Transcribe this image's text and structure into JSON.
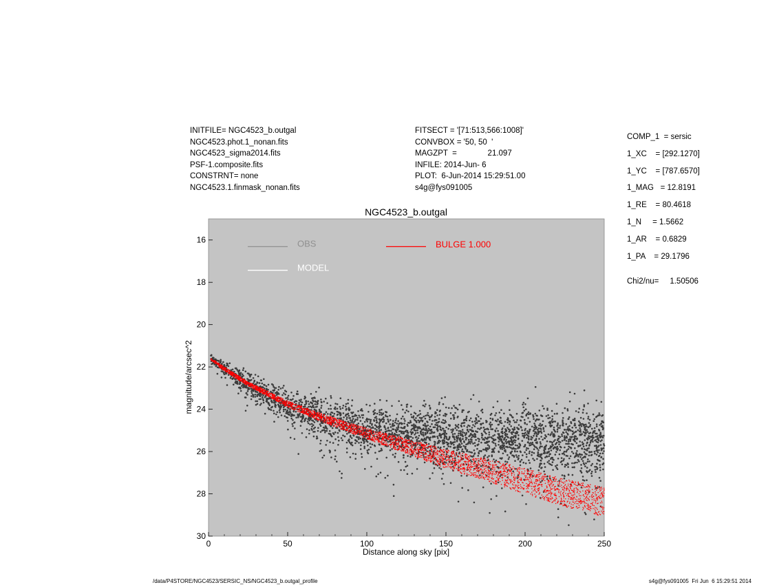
{
  "header_left": [
    "INITFILE= NGC4523_b.outgal",
    "NGC4523.phot.1_nonan.fits",
    "NGC4523_sigma2014.fits",
    "PSF-1.composite.fits",
    "CONSTRNT= none",
    "NGC4523.1.finmask_nonan.fits"
  ],
  "header_mid": [
    "FITSECT = '[71:513,566:1008]'",
    "CONVBOX = '50, 50  '",
    "MAGZPT  =              21.097",
    "INFILE: 2014-Jun- 6",
    "PLOT:  6-Jun-2014 15:29:51.00",
    "s4g@fys091005"
  ],
  "params": [
    "COMP_1  = sersic",
    "1_XC    = [292.1270]",
    "1_YC    = [787.6570]",
    "1_MAG   = 12.8191",
    "1_RE    = 80.4618",
    "1_N     = 1.5662",
    "1_AR    = 0.6829",
    "1_PA    = 29.1796"
  ],
  "chi2": "Chi2/nu=     1.50506",
  "footer_left": "/data/P4STORE/NGC4523/SERSIC_NS/NGC4523_b.outgal_profile",
  "footer_right": "s4g@fys091005  Fri Jun  6 15:29:51 2014",
  "colors": {
    "plot_background": "#c4c4c4",
    "obs": "#3c3c3c",
    "model": "#ffffff",
    "bulge": "#ff0000",
    "legend_obs": "#909090"
  },
  "chart_data": {
    "type": "scatter",
    "title": "NGC4523_b.outgal",
    "xlabel": "Distance along sky [pix]",
    "ylabel": "magnitude/arcsec^2",
    "xlim": [
      0,
      250
    ],
    "ylim": [
      30,
      15
    ],
    "y_inverted": true,
    "xticks": [
      0,
      50,
      100,
      150,
      200,
      250
    ],
    "yticks": [
      16,
      18,
      20,
      22,
      24,
      26,
      28,
      30
    ],
    "legend": [
      {
        "label": "OBS",
        "color": "#909090"
      },
      {
        "label": "MODEL",
        "color": "#ffffff"
      },
      {
        "label": "BULGE  1.000",
        "color": "#ff0000"
      }
    ],
    "series": [
      {
        "name": "OBS",
        "kind": "scatter",
        "envelope": {
          "x": [
            2,
            10,
            25,
            50,
            75,
            100,
            125,
            150,
            175,
            200,
            225,
            250
          ],
          "y_center": [
            21.6,
            22.1,
            22.9,
            23.8,
            24.4,
            24.9,
            25.1,
            25.3,
            25.4,
            25.4,
            25.5,
            25.6
          ],
          "y_spread": [
            0.2,
            0.4,
            0.6,
            0.8,
            1.1,
            1.3,
            1.4,
            1.5,
            1.6,
            1.7,
            1.8,
            1.9
          ]
        }
      },
      {
        "name": "BULGE  1.000",
        "kind": "band",
        "x": [
          2,
          10,
          25,
          50,
          75,
          100,
          125,
          150,
          175,
          200,
          225,
          250
        ],
        "y_bright": [
          21.6,
          22.0,
          22.7,
          23.6,
          24.3,
          24.9,
          25.4,
          25.9,
          26.3,
          26.8,
          27.3,
          27.7
        ],
        "y_faint": [
          21.7,
          22.2,
          22.9,
          23.9,
          24.7,
          25.4,
          26.1,
          26.8,
          27.4,
          28.0,
          28.6,
          29.1
        ]
      }
    ]
  }
}
